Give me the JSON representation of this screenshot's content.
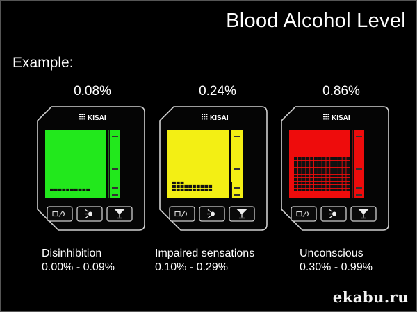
{
  "title": "Blood Alcohol Level",
  "example_label": "Example:",
  "brand": "KISAI",
  "devices": [
    {
      "reading": "0.08%",
      "state": "Disinhibition",
      "range": "0.00% - 0.09%",
      "screen_color": "#22e81c",
      "bar_level": 1.0
    },
    {
      "reading": "0.24%",
      "state": "Impaired sensations",
      "range": "0.10% - 0.29%",
      "screen_color": "#f3ef14",
      "bar_level": 0.24
    },
    {
      "reading": "0.86%",
      "state": "Unconscious",
      "range": "0.30% - 0.99%",
      "screen_color": "#ee0c0c",
      "bar_level": 1.0
    }
  ],
  "watermark": "ekabu.ru"
}
